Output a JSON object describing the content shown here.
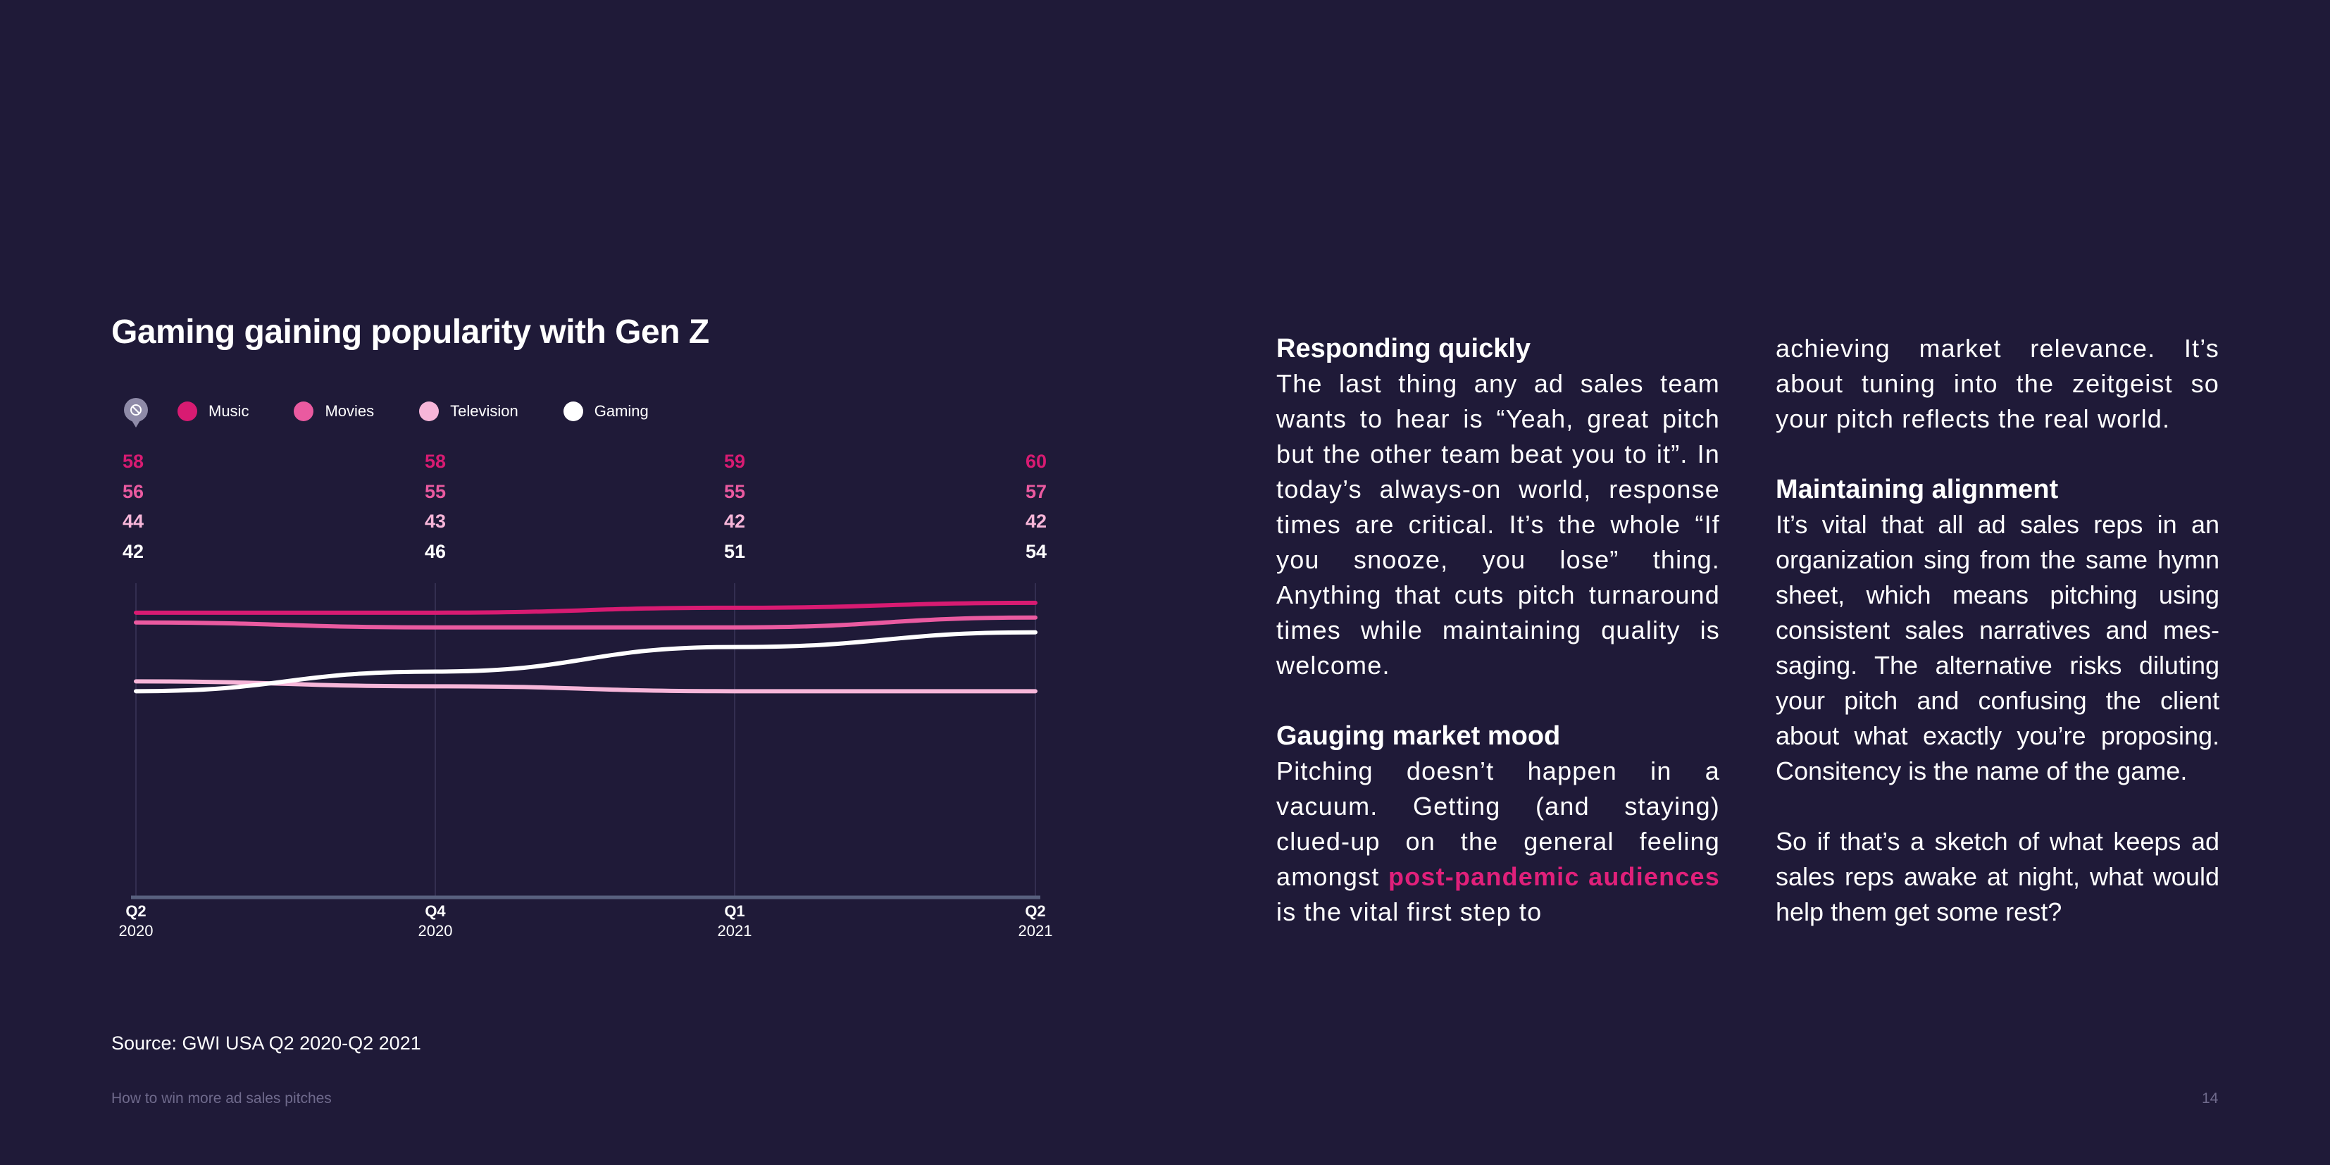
{
  "chart": {
    "title": "Gaming gaining popularity with Gen Z",
    "source": "Source: GWI USA Q2 2020-Q2 2021"
  },
  "chart_data": {
    "type": "line",
    "title": "Gaming gaining popularity with Gen Z",
    "categories": [
      "Q2 2020",
      "Q4 2020",
      "Q1 2021",
      "Q2 2021"
    ],
    "x_ticks": [
      {
        "q": "Q2",
        "y": "2020"
      },
      {
        "q": "Q4",
        "y": "2020"
      },
      {
        "q": "Q1",
        "y": "2021"
      },
      {
        "q": "Q2",
        "y": "2021"
      }
    ],
    "series": [
      {
        "name": "Music",
        "color": "#d81b72",
        "values": [
          58,
          58,
          59,
          60
        ]
      },
      {
        "name": "Movies",
        "color": "#ea5aa0",
        "values": [
          56,
          55,
          55,
          57
        ]
      },
      {
        "name": "Television",
        "color": "#f7b6d9",
        "values": [
          44,
          43,
          42,
          42
        ]
      },
      {
        "name": "Gaming",
        "color": "#ffffff",
        "values": [
          42,
          46,
          51,
          54
        ]
      }
    ],
    "ylim": [
      0,
      64
    ],
    "grid": "vertical",
    "legend_position": "top-left"
  },
  "columns": {
    "left": {
      "h1": "Responding quickly",
      "p1": "The last thing any ad sales team wants to hear is “Yeah, great pitch but the other team beat you to it”. In today’s always-on world, response times are critical. It’s the whole “If you snooze, you lose” thing. Anything that cuts pitch turnaround times while maintain­ing quality is welcome.",
      "h2": "Gauging market mood",
      "p2_before": "Pitching doesn’t happen in a vacuum. Getting (and staying) clued-up on the general feel­ing amongst ",
      "p2_highlight": "post-pandemic audiences",
      "p2_after": " is the vital first step to"
    },
    "right": {
      "p1": "achieving market relevance. It’s about tuning into the zeitgeist so your pitch reflects the real world.",
      "h1": "Maintaining alignment",
      "p2": "It’s vital that all ad sales reps in an organization sing from the same hymn sheet, which means pitching using consistent sales narratives and mes­saging. The alternative risks diluting your pitch and confusing the client about what exactly you’re proposing. Consitency is the name of the game.",
      "p3": "So if that’s a sketch of what keeps ad sales reps awake at night, what would help them get some rest?"
    }
  },
  "footer": {
    "title": "How to win more ad sales pitches",
    "page": "14"
  },
  "colors": {
    "background": "#1f1a38",
    "accent": "#e0207a",
    "axis": "#58607e",
    "grid": "#3a3558"
  }
}
